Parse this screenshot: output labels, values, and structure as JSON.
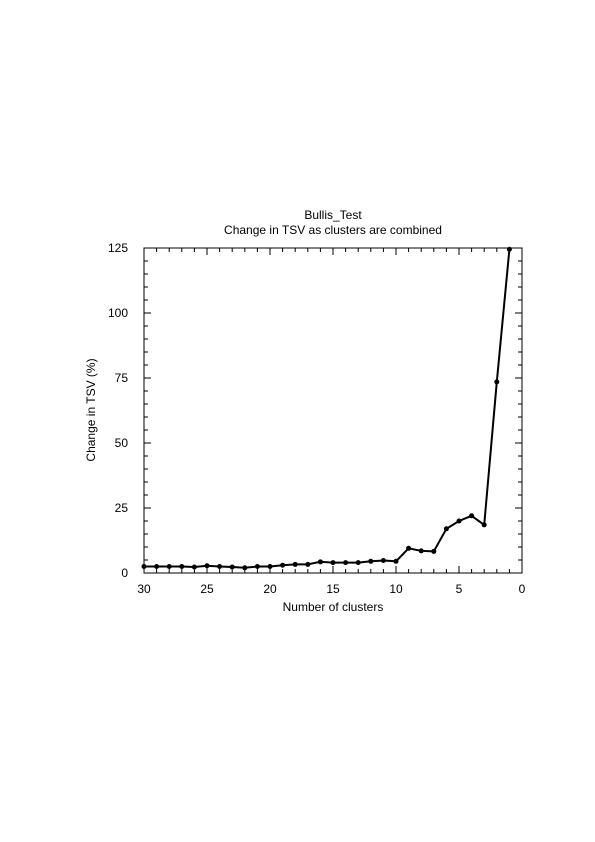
{
  "chart_data": {
    "type": "line",
    "title": "Bullis_Test",
    "subtitle": "Change in TSV as clusters are combined",
    "xlabel": "Number of clusters",
    "ylabel": "Change in TSV (%)",
    "xlim": [
      30,
      0
    ],
    "ylim": [
      0,
      125
    ],
    "x_ticks": [
      30,
      25,
      20,
      15,
      10,
      5,
      0
    ],
    "y_ticks": [
      0,
      25,
      50,
      75,
      100,
      125
    ],
    "x_tick_labels": [
      "30",
      "25",
      "20",
      "15",
      "10",
      "5",
      "0"
    ],
    "y_tick_labels": [
      "0",
      "25",
      "50",
      "75",
      "100",
      "125"
    ],
    "grid": false,
    "legend": "none",
    "series": [
      {
        "x": [
          30,
          29,
          28,
          27,
          26,
          25,
          24,
          23,
          22,
          21,
          20,
          19,
          18,
          17,
          16,
          15,
          14,
          13,
          12,
          11,
          10,
          9,
          8,
          7,
          6,
          5,
          4,
          3,
          2,
          1
        ],
        "values": [
          2.5,
          2.5,
          2.5,
          2.5,
          2.3,
          2.8,
          2.5,
          2.3,
          2.0,
          2.5,
          2.5,
          3.0,
          3.3,
          3.3,
          4.3,
          4.0,
          4.0,
          4.0,
          4.5,
          4.8,
          4.5,
          9.5,
          8.5,
          8.3,
          17.0,
          20.0,
          22.0,
          18.5,
          73.5,
          124.5
        ],
        "color": "#000000"
      }
    ]
  }
}
